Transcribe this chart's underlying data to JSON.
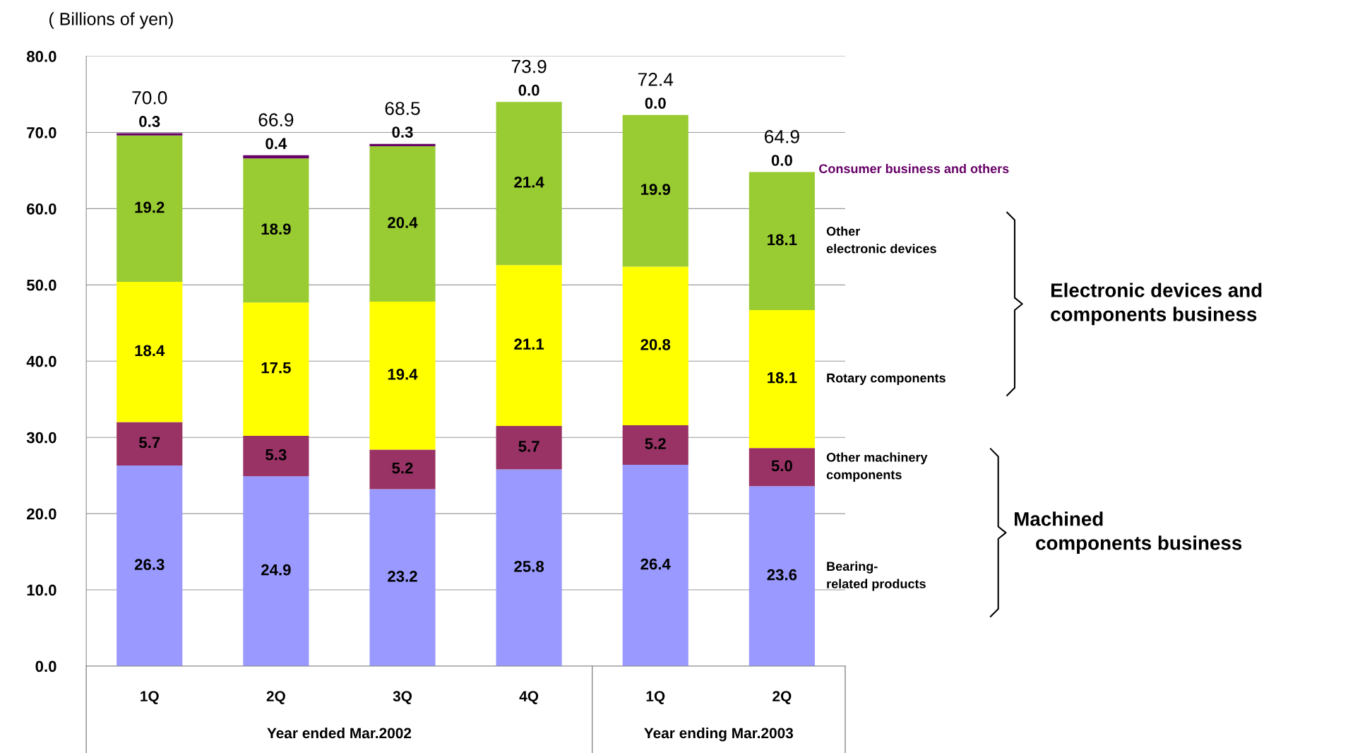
{
  "chart_data": {
    "type": "bar",
    "stacked": true,
    "ylabel": "( Billions of yen)",
    "categories": [
      "1Q",
      "2Q",
      "3Q",
      "4Q",
      "1Q",
      "2Q"
    ],
    "series": [
      {
        "name": "Bearing-\nrelated products",
        "color": "#9999ff",
        "values": [
          26.3,
          24.9,
          23.2,
          25.8,
          26.4,
          23.6
        ],
        "value_labels": [
          "26.3",
          "24.9",
          "23.2",
          "25.8",
          "26.4",
          "23.6"
        ]
      },
      {
        "name": "Other machinery\ncomponents",
        "color": "#993366",
        "values": [
          5.7,
          5.3,
          5.2,
          5.7,
          5.2,
          5.0
        ],
        "value_labels": [
          "5.7",
          "5.3",
          "5.2",
          "5.7",
          "5.2",
          "5.0"
        ]
      },
      {
        "name": "Rotary components",
        "color": "#ffff00",
        "values": [
          18.4,
          17.5,
          19.4,
          21.1,
          20.8,
          18.1
        ],
        "value_labels": [
          "18.4",
          "17.5",
          "19.4",
          "21.1",
          "20.8",
          "18.1"
        ]
      },
      {
        "name": "Other\nelectronic devices",
        "color": "#99cc33",
        "values": [
          19.2,
          18.9,
          20.4,
          21.4,
          19.9,
          18.1
        ],
        "value_labels": [
          "19.2",
          "18.9",
          "20.4",
          "21.4",
          "19.9",
          "18.1"
        ]
      },
      {
        "name": "Consumer business and others",
        "color": "#660066",
        "values": [
          0.3,
          0.4,
          0.3,
          0.0,
          0.0,
          0.0
        ],
        "value_labels": [
          "0.3",
          "0.4",
          "0.3",
          "0.0",
          "0.0",
          "0.0"
        ]
      }
    ],
    "totals": [
      "70.0",
      "66.9",
      "68.5",
      "73.9",
      "72.4",
      "64.9"
    ],
    "ylim": [
      0,
      80
    ],
    "yticks": [
      {
        "value": 0,
        "label": "0.0"
      },
      {
        "value": 10,
        "label": "10.0"
      },
      {
        "value": 20,
        "label": "20.0"
      },
      {
        "value": 30,
        "label": "30.0"
      },
      {
        "value": 40,
        "label": "40.0"
      },
      {
        "value": 50,
        "label": "50.0"
      },
      {
        "value": 60,
        "label": "60.0"
      },
      {
        "value": 70,
        "label": "70.0"
      },
      {
        "value": 80,
        "label": "80.0"
      }
    ],
    "grid": "y",
    "legend": false,
    "annotations": [
      "Year ended Mar.2002",
      "Year ending Mar.2003",
      "Electronic devices and\ncomponents business",
      "Machined\n    components business"
    ]
  }
}
